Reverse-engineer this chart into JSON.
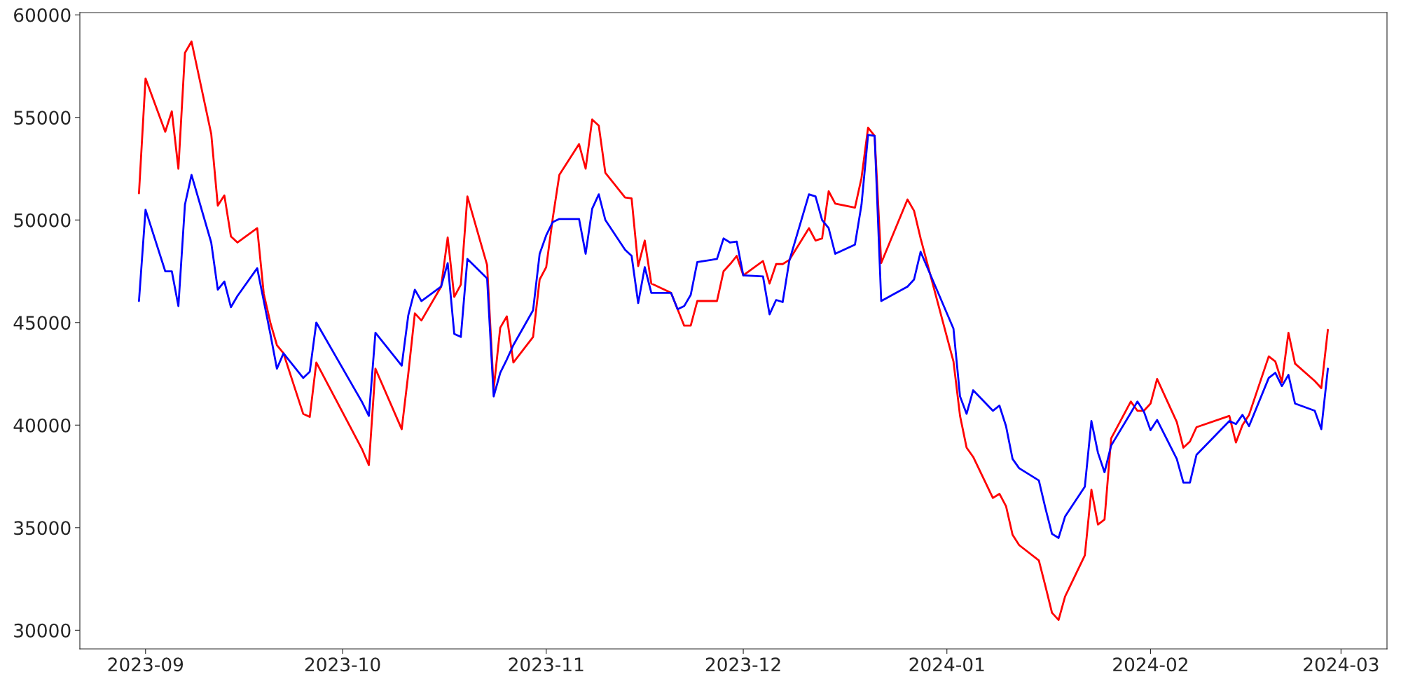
{
  "chart_data": {
    "type": "line",
    "x": [
      "2023-08-31",
      "2023-09-01",
      "2023-09-04",
      "2023-09-05",
      "2023-09-06",
      "2023-09-07",
      "2023-09-08",
      "2023-09-11",
      "2023-09-12",
      "2023-09-13",
      "2023-09-14",
      "2023-09-15",
      "2023-09-18",
      "2023-09-19",
      "2023-09-20",
      "2023-09-21",
      "2023-09-22",
      "2023-09-25",
      "2023-09-26",
      "2023-09-27",
      "2023-10-04",
      "2023-10-05",
      "2023-10-06",
      "2023-10-10",
      "2023-10-11",
      "2023-10-12",
      "2023-10-13",
      "2023-10-16",
      "2023-10-17",
      "2023-10-18",
      "2023-10-19",
      "2023-10-20",
      "2023-10-23",
      "2023-10-24",
      "2023-10-25",
      "2023-10-26",
      "2023-10-27",
      "2023-10-30",
      "2023-10-31",
      "2023-11-01",
      "2023-11-02",
      "2023-11-03",
      "2023-11-06",
      "2023-11-07",
      "2023-11-08",
      "2023-11-09",
      "2023-11-10",
      "2023-11-13",
      "2023-11-14",
      "2023-11-15",
      "2023-11-16",
      "2023-11-17",
      "2023-11-20",
      "2023-11-21",
      "2023-11-22",
      "2023-11-23",
      "2023-11-24",
      "2023-11-27",
      "2023-11-28",
      "2023-11-29",
      "2023-11-30",
      "2023-12-01",
      "2023-12-04",
      "2023-12-05",
      "2023-12-06",
      "2023-12-07",
      "2023-12-08",
      "2023-12-11",
      "2023-12-12",
      "2023-12-13",
      "2023-12-14",
      "2023-12-15",
      "2023-12-18",
      "2023-12-19",
      "2023-12-20",
      "2023-12-21",
      "2023-12-22",
      "2023-12-26",
      "2023-12-27",
      "2023-12-28",
      "2024-01-02",
      "2024-01-03",
      "2024-01-04",
      "2024-01-05",
      "2024-01-08",
      "2024-01-09",
      "2024-01-10",
      "2024-01-11",
      "2024-01-12",
      "2024-01-15",
      "2024-01-16",
      "2024-01-17",
      "2024-01-18",
      "2024-01-19",
      "2024-01-22",
      "2024-01-23",
      "2024-01-24",
      "2024-01-25",
      "2024-01-26",
      "2024-01-29",
      "2024-01-30",
      "2024-01-31",
      "2024-02-01",
      "2024-02-02",
      "2024-02-05",
      "2024-02-06",
      "2024-02-07",
      "2024-02-08",
      "2024-02-13",
      "2024-02-14",
      "2024-02-15",
      "2024-02-16",
      "2024-02-19",
      "2024-02-20",
      "2024-02-21",
      "2024-02-22",
      "2024-02-23",
      "2024-02-26",
      "2024-02-27",
      "2024-02-28"
    ],
    "series": [
      {
        "color": "#ff0000",
        "values": [
          51300,
          56900,
          54300,
          55300,
          52500,
          58150,
          58700,
          54200,
          50700,
          51200,
          49200,
          48900,
          49600,
          46400,
          45000,
          43900,
          43500,
          40550,
          40400,
          43050,
          38800,
          38050,
          42750,
          39800,
          42500,
          45450,
          45100,
          46750,
          49150,
          46250,
          46850,
          51150,
          47800,
          41750,
          44750,
          45300,
          43050,
          44300,
          47100,
          47700,
          50100,
          52200,
          53700,
          52500,
          54900,
          54600,
          52300,
          51100,
          51050,
          47750,
          49000,
          46900,
          46450,
          45650,
          44850,
          44850,
          46050,
          46050,
          47500,
          47850,
          48250,
          47300,
          48000,
          46900,
          47850,
          47850,
          48050,
          49600,
          49000,
          49100,
          51400,
          50800,
          50600,
          52050,
          54500,
          54100,
          47900,
          51000,
          50450,
          49100,
          43100,
          40450,
          38900,
          38450,
          36450,
          36650,
          36050,
          34650,
          34150,
          33400,
          32150,
          30850,
          30500,
          31650,
          33650,
          36850,
          35150,
          35400,
          39350,
          41150,
          40700,
          40700,
          41050,
          42250,
          40150,
          38900,
          39200,
          39900,
          40450,
          39150,
          40000,
          40500,
          43350,
          43100,
          42100,
          44500,
          43000,
          42150,
          41800,
          44650
        ]
      },
      {
        "color": "#0000ff",
        "values": [
          46050,
          50500,
          47500,
          47500,
          45800,
          50750,
          52200,
          48900,
          46600,
          47000,
          45750,
          46300,
          47650,
          46050,
          44450,
          42750,
          43500,
          42300,
          42600,
          45000,
          41100,
          40450,
          44500,
          42900,
          45350,
          46600,
          46050,
          46750,
          47900,
          44450,
          44300,
          48100,
          47150,
          41400,
          42550,
          43200,
          43900,
          45600,
          48350,
          49250,
          49900,
          50050,
          50050,
          48350,
          50550,
          51250,
          50000,
          48550,
          48250,
          45950,
          47700,
          46450,
          46450,
          45650,
          45800,
          46350,
          47950,
          48100,
          49100,
          48900,
          48950,
          47300,
          47250,
          45400,
          46100,
          46000,
          48000,
          51250,
          51150,
          50000,
          49600,
          48350,
          48800,
          50750,
          54150,
          54100,
          46050,
          46750,
          47100,
          48450,
          44700,
          41400,
          40550,
          41700,
          40700,
          40950,
          39950,
          38350,
          37900,
          37300,
          35950,
          34700,
          34500,
          35550,
          37000,
          40200,
          38650,
          37700,
          39000,
          40600,
          41150,
          40650,
          39750,
          40250,
          38350,
          37200,
          37200,
          38550,
          40200,
          40050,
          40500,
          39950,
          42300,
          42550,
          41900,
          42450,
          41050,
          40700,
          39800,
          42750
        ]
      }
    ],
    "xlim": [
      "2023-08-22",
      "2024-03-08"
    ],
    "xticks": [
      {
        "value": "2023-09-01",
        "label": "2023-09"
      },
      {
        "value": "2023-10-01",
        "label": "2023-10"
      },
      {
        "value": "2023-11-01",
        "label": "2023-11"
      },
      {
        "value": "2023-12-01",
        "label": "2023-12"
      },
      {
        "value": "2024-01-01",
        "label": "2024-01"
      },
      {
        "value": "2024-02-01",
        "label": "2024-02"
      },
      {
        "value": "2024-03-01",
        "label": "2024-03"
      }
    ],
    "ylim": [
      29090,
      60110
    ],
    "yticks": [
      30000,
      35000,
      40000,
      45000,
      50000,
      55000,
      60000
    ]
  }
}
